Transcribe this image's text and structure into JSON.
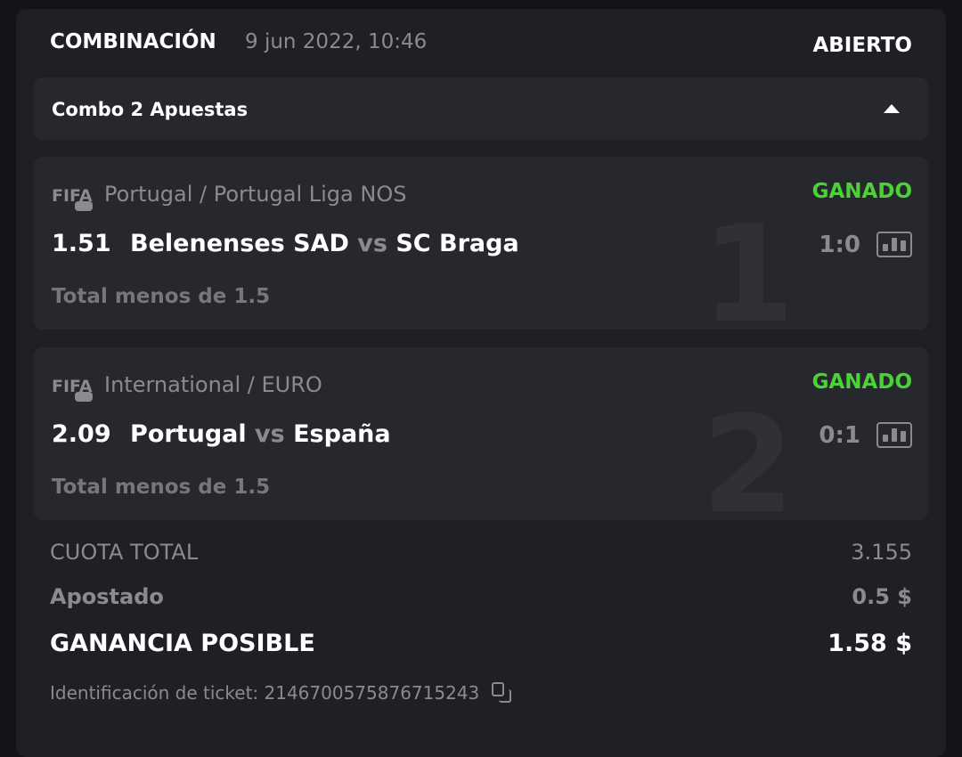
{
  "header": {
    "title": "COMBINACIÓN",
    "date": "9 jun 2022, 10:46",
    "status": "ABIERTO"
  },
  "combo": {
    "label": "Combo 2 Apuestas",
    "toggle_icon": "caret-up-icon"
  },
  "bets": [
    {
      "index": "1",
      "sport_icon": "fifa-gamepad-icon",
      "league": "Portugal / Portugal Liga NOS",
      "result": "GANADO",
      "odds": "1.51",
      "home": "Belenenses SAD",
      "vs": "vs",
      "away": "SC Braga",
      "score": "1:0",
      "market": "Total menos de 1.5"
    },
    {
      "index": "2",
      "sport_icon": "fifa-gamepad-icon",
      "league": "International / EURO",
      "result": "GANADO",
      "odds": "2.09",
      "home": "Portugal",
      "vs": "vs",
      "away": "España",
      "score": "0:1",
      "market": "Total menos de 1.5"
    }
  ],
  "summary": {
    "total_odds_label": "CUOTA TOTAL",
    "total_odds": "3.155",
    "stake_label": "Apostado",
    "stake": "0.5 $",
    "payout_label": "GANANCIA POSIBLE",
    "payout": "1.58 $"
  },
  "ticket": {
    "label": "Identificación de ticket: 2146700575876715243"
  },
  "colors": {
    "won": "#4cd137",
    "panel": "#1f2025",
    "card": "#27282e"
  }
}
